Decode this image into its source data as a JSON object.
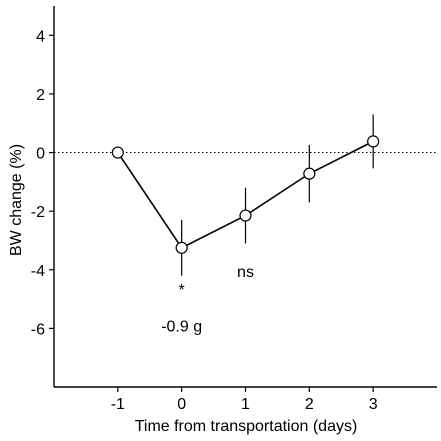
{
  "chart_data": {
    "type": "line",
    "xlabel": "Time from transportation (days)",
    "ylabel": "BW change (%)",
    "xlim": [
      -2,
      4
    ],
    "ylim": [
      -8,
      5
    ],
    "xticks": [
      -1,
      0,
      1,
      2,
      3
    ],
    "yticks": [
      -6,
      -4,
      -2,
      0,
      2,
      4
    ],
    "reference_line": {
      "y": 0,
      "style": "dotted"
    },
    "grid": false,
    "legend": "none",
    "series": [
      {
        "x": [
          -1,
          0,
          1,
          2,
          3
        ],
        "values": [
          0.0,
          -3.25,
          -2.15,
          -0.72,
          0.38
        ],
        "error": [
          0,
          0.95,
          0.95,
          0.98,
          0.92
        ],
        "marker": "open-circle"
      }
    ],
    "annotations": [
      {
        "text": "*",
        "x": 0,
        "y": -4.65
      },
      {
        "text": "ns",
        "x": 1,
        "y": -4.05
      },
      {
        "text": "-0.9 g",
        "x": 0,
        "y": -5.9
      }
    ]
  }
}
